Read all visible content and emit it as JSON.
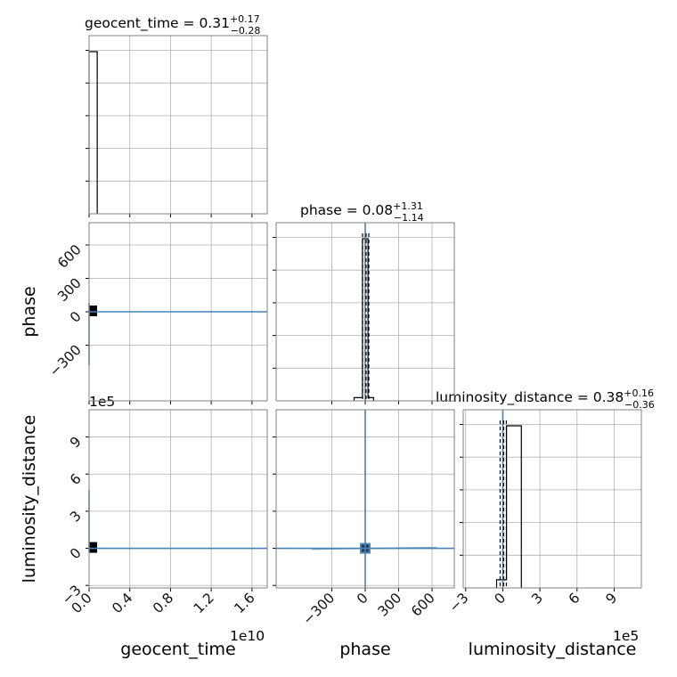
{
  "chart_data": {
    "type": "corner",
    "parameters": [
      "geocent_time",
      "phase",
      "luminosity_distance"
    ],
    "titles": {
      "geocent_time": {
        "label": "geocent_time",
        "median": "0.31",
        "plus": "+0.17",
        "minus": "−0.28"
      },
      "phase": {
        "label": "phase",
        "median": "0.08",
        "plus": "+1.31",
        "minus": "−1.14"
      },
      "luminosity_distance": {
        "label": "luminosity_distance",
        "median": "0.38",
        "plus": "+0.16",
        "minus": "−0.36"
      }
    },
    "truths": {
      "geocent_time": 0,
      "phase": 0,
      "luminosity_distance": 0
    },
    "axes": {
      "geocent_time": {
        "xlabel": "geocent_time",
        "range": [
          0,
          17500000000.0
        ],
        "ticks": [
          0,
          0.4,
          0.8,
          1.2,
          1.6
        ],
        "tick_labels": [
          "0.0",
          "0.4",
          "0.8",
          "1.2",
          "1.6"
        ],
        "offset": "1e10"
      },
      "phase": {
        "xlabel": "phase",
        "ylabel": "phase",
        "range": [
          -800,
          800
        ],
        "ticks": [
          -300,
          0,
          300,
          600
        ],
        "tick_labels": [
          "−300",
          "0",
          "300",
          "600"
        ]
      },
      "luminosity_distance": {
        "xlabel": "luminosity_distance",
        "ylabel": "luminosity_distance",
        "range": [
          -320000.0,
          1120000.0
        ],
        "ticks": [
          -3,
          0,
          3,
          6,
          9
        ],
        "tick_labels": [
          "−3",
          "0",
          "3",
          "6",
          "9"
        ],
        "offset": "1e5"
      }
    },
    "histograms": {
      "geocent_time": {
        "bin_edges": [
          0,
          800000000.0
        ],
        "counts": [
          1
        ]
      },
      "phase": {
        "bin_edges": [
          -100,
          -25,
          25,
          75
        ],
        "counts": [
          0.02,
          1.0,
          0.02
        ]
      },
      "luminosity_distance": {
        "bin_edges": [
          -50000.0,
          30000.0,
          150000.0
        ],
        "counts": [
          0.05,
          1.0
        ]
      }
    },
    "grid": true
  }
}
